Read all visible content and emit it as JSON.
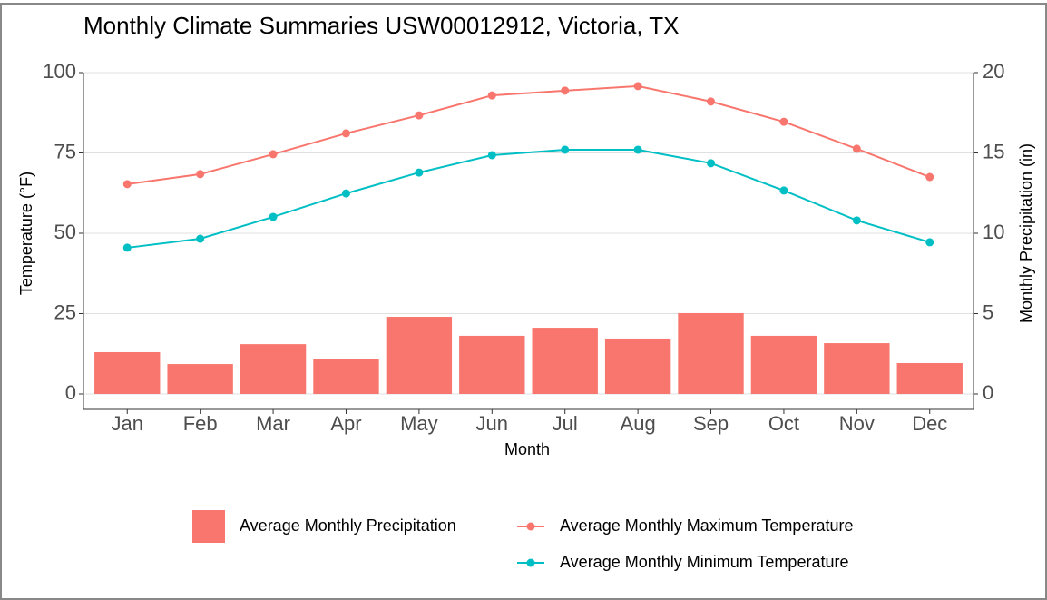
{
  "chart_data": {
    "type": "bar-line",
    "title": "Monthly Climate Summaries USW00012912, Victoria, TX",
    "xlabel": "Month",
    "ylabel": "Temperature (°F)",
    "y2label": "Monthly Precipitation (in)",
    "categories": [
      "Jan",
      "Feb",
      "Mar",
      "Apr",
      "May",
      "Jun",
      "Jul",
      "Aug",
      "Sep",
      "Oct",
      "Nov",
      "Dec"
    ],
    "series": [
      {
        "name": "Average Monthly Precipitation",
        "type": "bar",
        "axis": "y2",
        "color": "#f8766d",
        "values": [
          2.6,
          1.86,
          3.1,
          2.2,
          4.8,
          3.62,
          4.12,
          3.45,
          5.03,
          3.62,
          3.16,
          1.92
        ]
      },
      {
        "name": "Average Monthly Maximum Temperature",
        "type": "line",
        "color": "#f8766d",
        "values": [
          65.3,
          68.4,
          74.6,
          81.1,
          86.7,
          92.9,
          94.4,
          95.8,
          91.0,
          84.7,
          76.3,
          67.5
        ]
      },
      {
        "name": "Average Monthly Minimum Temperature",
        "type": "line",
        "color": "#00bfc4",
        "values": [
          45.5,
          48.3,
          55.1,
          62.4,
          68.9,
          74.3,
          76.0,
          76.0,
          71.8,
          63.3,
          54.0,
          47.2
        ]
      }
    ],
    "ylim": [
      0,
      100
    ],
    "yticks": [
      0,
      25,
      50,
      75,
      100
    ],
    "y2lim": [
      0,
      20
    ],
    "y2ticks": [
      0,
      5,
      10,
      15,
      20
    ],
    "grid": true,
    "legend": "bottom"
  }
}
